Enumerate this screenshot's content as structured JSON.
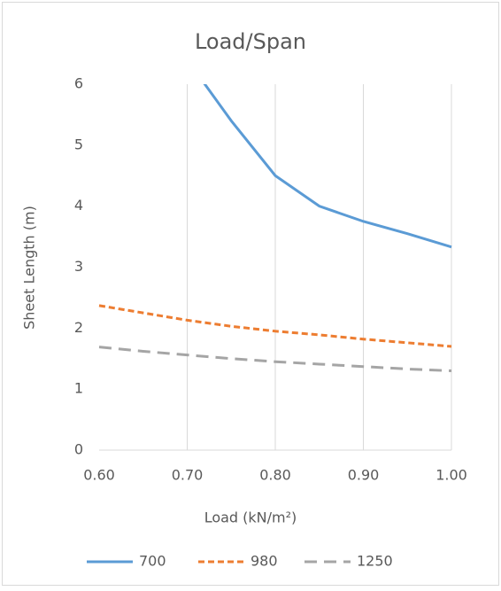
{
  "chart_data": {
    "type": "line",
    "title": "Load/Span",
    "x_label": "Load (kN/m²)",
    "y_label": "Sheet Length (m)",
    "x": [
      0.6,
      0.65,
      0.7,
      0.75,
      0.8,
      0.85,
      0.9,
      0.95,
      1.0
    ],
    "series": [
      {
        "name": "700",
        "color": "#5b9bd5",
        "dash": "solid",
        "values": [
          null,
          null,
          6.4,
          5.4,
          4.5,
          4.0,
          3.75,
          3.55,
          3.33
        ]
      },
      {
        "name": "980",
        "color": "#ed7d31",
        "dash": "short",
        "values": [
          2.37,
          2.25,
          2.13,
          2.03,
          1.95,
          1.89,
          1.82,
          1.76,
          1.7
        ]
      },
      {
        "name": "1250",
        "color": "#a5a5a5",
        "dash": "long",
        "values": [
          1.69,
          1.62,
          1.56,
          1.5,
          1.45,
          1.41,
          1.37,
          1.33,
          1.3
        ]
      }
    ],
    "xlim": [
      0.6,
      1.0
    ],
    "xticks": [
      {
        "value": 0.6,
        "label": "0.60"
      },
      {
        "value": 0.7,
        "label": "0.70"
      },
      {
        "value": 0.8,
        "label": "0.80"
      },
      {
        "value": 0.9,
        "label": "0.90"
      },
      {
        "value": 1.0,
        "label": "1.00"
      }
    ],
    "ylim": [
      0,
      6
    ],
    "yticks": [
      0,
      1,
      2,
      3,
      4,
      5,
      6
    ],
    "grid": "x",
    "legend": "bottom"
  }
}
